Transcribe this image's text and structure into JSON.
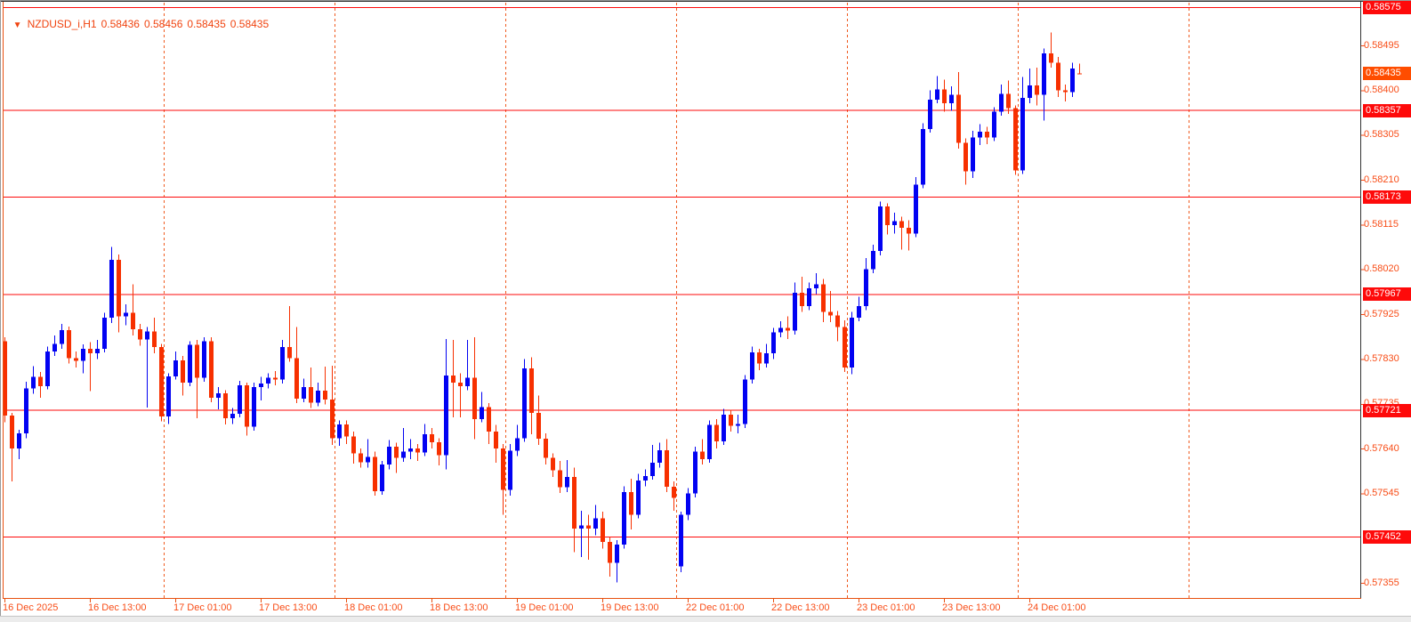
{
  "title": {
    "symbol": "NZDUSD_i,H1",
    "open": "0.58436",
    "high": "0.58456",
    "low": "0.58435",
    "close": "0.58435",
    "dropdown_icon": "▼"
  },
  "colors": {
    "background": "#ffffff",
    "bull_candle": "#0202f2",
    "bear_candle": "#f73000",
    "level_line": "#fe0a0a",
    "level_badge_bg": "#fe0a0a",
    "current_badge_bg": "#ff4d00",
    "badge_text": "#ffffff",
    "axis_text": "#f84d17",
    "title_text": "#f0430f",
    "grid_separator": "#ef5a1f",
    "frame_orange": "#e8500f",
    "frame_dark": "#333333"
  },
  "price_axis": {
    "ticks": [
      {
        "label": "0.58495",
        "price": 0.58495
      },
      {
        "label": "0.58400",
        "price": 0.584
      },
      {
        "label": "0.58305",
        "price": 0.58305
      },
      {
        "label": "0.58210",
        "price": 0.5821
      },
      {
        "label": "0.58115",
        "price": 0.58115
      },
      {
        "label": "0.58020",
        "price": 0.5802
      },
      {
        "label": "0.57925",
        "price": 0.57925
      },
      {
        "label": "0.57830",
        "price": 0.5783
      },
      {
        "label": "0.57735",
        "price": 0.57735
      },
      {
        "label": "0.57640",
        "price": 0.5764
      },
      {
        "label": "0.57545",
        "price": 0.57545
      },
      {
        "label": "0.57355",
        "price": 0.57355
      }
    ]
  },
  "time_axis": {
    "labels": [
      {
        "text": "16 Dec 2025",
        "index": 1
      },
      {
        "text": "16 Dec 13:00",
        "index": 13
      },
      {
        "text": "17 Dec 01:00",
        "index": 25
      },
      {
        "text": "17 Dec 13:00",
        "index": 37
      },
      {
        "text": "18 Dec 01:00",
        "index": 49
      },
      {
        "text": "18 Dec 13:00",
        "index": 61
      },
      {
        "text": "19 Dec 01:00",
        "index": 73
      },
      {
        "text": "19 Dec 13:00",
        "index": 85
      },
      {
        "text": "22 Dec 01:00",
        "index": 97
      },
      {
        "text": "22 Dec 13:00",
        "index": 109
      },
      {
        "text": "23 Dec 01:00",
        "index": 121
      },
      {
        "text": "23 Dec 13:00",
        "index": 133
      },
      {
        "text": "24 Dec 01:00",
        "index": 145
      }
    ]
  },
  "levels": [
    {
      "label": "0.58575",
      "price": 0.58575
    },
    {
      "label": "0.58357",
      "price": 0.58357
    },
    {
      "label": "0.58173",
      "price": 0.58173
    },
    {
      "label": "0.57967",
      "price": 0.57967
    },
    {
      "label": "0.57721",
      "price": 0.57721
    },
    {
      "label": "0.57452",
      "price": 0.57452
    }
  ],
  "current_price": {
    "label": "0.58435",
    "price": 0.58435
  },
  "day_separators": [
    24,
    48,
    72,
    96,
    120,
    144,
    168
  ],
  "chart_data": {
    "type": "candlestick",
    "symbol": "NZDUSD_i",
    "timeframe": "H1",
    "title": "NZDUSD_i,H1",
    "x_start": "16 Dec 2025 00:00",
    "x_step_hours": 1,
    "ylim": [
      0.573,
      0.5859
    ],
    "grid": false,
    "note": "candles are [open, high, low, close]; weekend 20-21 Dec skipped between index 95 and 96",
    "candles": [
      [
        0.57795,
        0.57878,
        0.57788,
        0.57868
      ],
      [
        0.57868,
        0.57876,
        0.57696,
        0.5771
      ],
      [
        0.5771,
        0.57716,
        0.5757,
        0.5764
      ],
      [
        0.5764,
        0.5768,
        0.57618,
        0.57672
      ],
      [
        0.57672,
        0.57782,
        0.57662,
        0.57768
      ],
      [
        0.57768,
        0.57815,
        0.57756,
        0.57792
      ],
      [
        0.57792,
        0.57802,
        0.57748,
        0.57772
      ],
      [
        0.57772,
        0.57856,
        0.57766,
        0.57846
      ],
      [
        0.57846,
        0.5788,
        0.57836,
        0.57862
      ],
      [
        0.57862,
        0.57904,
        0.57852,
        0.57891
      ],
      [
        0.57891,
        0.57899,
        0.5782,
        0.57832
      ],
      [
        0.57832,
        0.57846,
        0.57812,
        0.57826
      ],
      [
        0.57826,
        0.57861,
        0.578,
        0.57852
      ],
      [
        0.57852,
        0.57866,
        0.57762,
        0.57842
      ],
      [
        0.57842,
        0.5787,
        0.5783,
        0.57852
      ],
      [
        0.57852,
        0.57928,
        0.57844,
        0.57918
      ],
      [
        0.57918,
        0.58068,
        0.57906,
        0.5804
      ],
      [
        0.5804,
        0.58052,
        0.57886,
        0.5792
      ],
      [
        0.5792,
        0.57946,
        0.57902,
        0.57928
      ],
      [
        0.57928,
        0.57988,
        0.5788,
        0.57893
      ],
      [
        0.57893,
        0.57904,
        0.57858,
        0.57871
      ],
      [
        0.57871,
        0.57898,
        0.57727,
        0.57888
      ],
      [
        0.57888,
        0.57918,
        0.57842,
        0.57855
      ],
      [
        0.57855,
        0.57862,
        0.57698,
        0.57708
      ],
      [
        0.57708,
        0.578,
        0.57692,
        0.57793
      ],
      [
        0.57793,
        0.57846,
        0.57786,
        0.57827
      ],
      [
        0.57827,
        0.57836,
        0.57752,
        0.5778
      ],
      [
        0.5778,
        0.57868,
        0.57772,
        0.5786
      ],
      [
        0.5786,
        0.5787,
        0.57704,
        0.5779
      ],
      [
        0.5779,
        0.57876,
        0.57782,
        0.57868
      ],
      [
        0.57868,
        0.57876,
        0.57738,
        0.57748
      ],
      [
        0.57748,
        0.5777,
        0.57723,
        0.57757
      ],
      [
        0.57757,
        0.57764,
        0.57691,
        0.57704
      ],
      [
        0.57704,
        0.57726,
        0.57692,
        0.57714
      ],
      [
        0.57714,
        0.57784,
        0.57706,
        0.57774
      ],
      [
        0.57774,
        0.5778,
        0.57668,
        0.57686
      ],
      [
        0.57686,
        0.5778,
        0.57678,
        0.5777
      ],
      [
        0.5777,
        0.57792,
        0.57742,
        0.57778
      ],
      [
        0.57778,
        0.578,
        0.57768,
        0.5779
      ],
      [
        0.5779,
        0.57804,
        0.57774,
        0.57786
      ],
      [
        0.57786,
        0.5787,
        0.57778,
        0.57855
      ],
      [
        0.57855,
        0.57942,
        0.57824,
        0.57832
      ],
      [
        0.57832,
        0.57898,
        0.57736,
        0.57746
      ],
      [
        0.57746,
        0.57788,
        0.57738,
        0.5777
      ],
      [
        0.5777,
        0.57812,
        0.57726,
        0.57737
      ],
      [
        0.57737,
        0.5778,
        0.5773,
        0.57763
      ],
      [
        0.57763,
        0.57814,
        0.57734,
        0.57744
      ],
      [
        0.57744,
        0.57816,
        0.57648,
        0.57662
      ],
      [
        0.57662,
        0.577,
        0.57646,
        0.57691
      ],
      [
        0.57691,
        0.577,
        0.5765,
        0.57666
      ],
      [
        0.57666,
        0.57676,
        0.57608,
        0.5763
      ],
      [
        0.5763,
        0.5764,
        0.576,
        0.57611
      ],
      [
        0.57611,
        0.5766,
        0.576,
        0.57622
      ],
      [
        0.57622,
        0.57634,
        0.5754,
        0.5755
      ],
      [
        0.5755,
        0.57614,
        0.57542,
        0.57606
      ],
      [
        0.57606,
        0.57658,
        0.57596,
        0.57644
      ],
      [
        0.57644,
        0.57652,
        0.57588,
        0.5762
      ],
      [
        0.5762,
        0.57684,
        0.57612,
        0.57634
      ],
      [
        0.57634,
        0.5766,
        0.57618,
        0.5764
      ],
      [
        0.5764,
        0.5765,
        0.57614,
        0.57632
      ],
      [
        0.57632,
        0.57692,
        0.57624,
        0.5767
      ],
      [
        0.5767,
        0.57684,
        0.5764,
        0.57653
      ],
      [
        0.57653,
        0.57662,
        0.57604,
        0.57626
      ],
      [
        0.57626,
        0.57872,
        0.57596,
        0.57795
      ],
      [
        0.57795,
        0.5787,
        0.57706,
        0.5778
      ],
      [
        0.5778,
        0.578,
        0.57706,
        0.57772
      ],
      [
        0.57772,
        0.5787,
        0.57764,
        0.5779
      ],
      [
        0.5779,
        0.57876,
        0.5766,
        0.57702
      ],
      [
        0.57702,
        0.5776,
        0.57696,
        0.57728
      ],
      [
        0.57728,
        0.57736,
        0.5765,
        0.57676
      ],
      [
        0.57676,
        0.5769,
        0.5761,
        0.5764
      ],
      [
        0.5764,
        0.5765,
        0.575,
        0.57552
      ],
      [
        0.57552,
        0.5765,
        0.5754,
        0.57635
      ],
      [
        0.57635,
        0.5769,
        0.57624,
        0.57662
      ],
      [
        0.57662,
        0.5783,
        0.57654,
        0.5781
      ],
      [
        0.5781,
        0.57834,
        0.5767,
        0.57716
      ],
      [
        0.57716,
        0.57752,
        0.57648,
        0.57661
      ],
      [
        0.57661,
        0.57672,
        0.57606,
        0.5762
      ],
      [
        0.5762,
        0.5763,
        0.5758,
        0.57594
      ],
      [
        0.57594,
        0.57614,
        0.57546,
        0.57558
      ],
      [
        0.57558,
        0.57616,
        0.57548,
        0.5758
      ],
      [
        0.5758,
        0.576,
        0.5742,
        0.5747
      ],
      [
        0.5747,
        0.57508,
        0.5741,
        0.57477
      ],
      [
        0.57477,
        0.575,
        0.57404,
        0.5747
      ],
      [
        0.5747,
        0.5752,
        0.57456,
        0.57492
      ],
      [
        0.57492,
        0.57506,
        0.57428,
        0.57442
      ],
      [
        0.57442,
        0.57452,
        0.57368,
        0.57398
      ],
      [
        0.57398,
        0.57446,
        0.57356,
        0.57436
      ],
      [
        0.57436,
        0.5756,
        0.57428,
        0.57548
      ],
      [
        0.57548,
        0.57576,
        0.57468,
        0.575
      ],
      [
        0.575,
        0.57586,
        0.57492,
        0.57572
      ],
      [
        0.57572,
        0.57596,
        0.5756,
        0.57582
      ],
      [
        0.57582,
        0.57648,
        0.57574,
        0.5761
      ],
      [
        0.5761,
        0.57652,
        0.576,
        0.57636
      ],
      [
        0.57636,
        0.5766,
        0.57548,
        0.57559
      ],
      [
        0.57559,
        0.5757,
        0.57508,
        0.57535
      ],
      [
        0.5739,
        0.57506,
        0.57378,
        0.575
      ],
      [
        0.575,
        0.57556,
        0.57488,
        0.57545
      ],
      [
        0.57545,
        0.57644,
        0.57536,
        0.57634
      ],
      [
        0.57634,
        0.5766,
        0.57606,
        0.57618
      ],
      [
        0.57618,
        0.577,
        0.5761,
        0.5769
      ],
      [
        0.5769,
        0.57702,
        0.5764,
        0.57655
      ],
      [
        0.57655,
        0.57724,
        0.57648,
        0.57712
      ],
      [
        0.57712,
        0.57722,
        0.57676,
        0.57688
      ],
      [
        0.57688,
        0.57712,
        0.57672,
        0.57692
      ],
      [
        0.57692,
        0.57796,
        0.57684,
        0.57786
      ],
      [
        0.57786,
        0.57856,
        0.57778,
        0.57844
      ],
      [
        0.57844,
        0.57852,
        0.57806,
        0.5782
      ],
      [
        0.5782,
        0.57862,
        0.57812,
        0.57842
      ],
      [
        0.57842,
        0.57896,
        0.5783,
        0.57886
      ],
      [
        0.57886,
        0.5791,
        0.57876,
        0.57896
      ],
      [
        0.57896,
        0.5792,
        0.57872,
        0.5789
      ],
      [
        0.5789,
        0.57992,
        0.57882,
        0.5797
      ],
      [
        0.5797,
        0.58004,
        0.5793,
        0.57942
      ],
      [
        0.57942,
        0.57992,
        0.57934,
        0.5798
      ],
      [
        0.5798,
        0.58012,
        0.57968,
        0.57988
      ],
      [
        0.57988,
        0.58,
        0.57908,
        0.5793
      ],
      [
        0.5793,
        0.57974,
        0.57908,
        0.57922
      ],
      [
        0.57922,
        0.57932,
        0.57868,
        0.57898
      ],
      [
        0.57898,
        0.57912,
        0.57802,
        0.57812
      ],
      [
        0.57812,
        0.5793,
        0.57798,
        0.57918
      ],
      [
        0.57918,
        0.57962,
        0.5791,
        0.57942
      ],
      [
        0.57942,
        0.58044,
        0.57934,
        0.5802
      ],
      [
        0.5802,
        0.58072,
        0.58012,
        0.58059
      ],
      [
        0.58059,
        0.58164,
        0.5805,
        0.58153
      ],
      [
        0.58153,
        0.5816,
        0.58094,
        0.58114
      ],
      [
        0.58114,
        0.5814,
        0.58096,
        0.58122
      ],
      [
        0.58122,
        0.58132,
        0.58062,
        0.58108
      ],
      [
        0.58108,
        0.58124,
        0.5806,
        0.58096
      ],
      [
        0.58096,
        0.58216,
        0.58088,
        0.582
      ],
      [
        0.582,
        0.5833,
        0.58192,
        0.58318
      ],
      [
        0.58318,
        0.584,
        0.5831,
        0.5838
      ],
      [
        0.5838,
        0.5843,
        0.58372,
        0.58402
      ],
      [
        0.58402,
        0.58422,
        0.58354,
        0.58372
      ],
      [
        0.58372,
        0.58408,
        0.58356,
        0.5839
      ],
      [
        0.5839,
        0.58438,
        0.58276,
        0.58288
      ],
      [
        0.58288,
        0.58298,
        0.582,
        0.58228
      ],
      [
        0.58228,
        0.58314,
        0.58214,
        0.583
      ],
      [
        0.583,
        0.58328,
        0.58284,
        0.58312
      ],
      [
        0.58312,
        0.58322,
        0.58286,
        0.583
      ],
      [
        0.583,
        0.58364,
        0.58292,
        0.58354
      ],
      [
        0.58354,
        0.58412,
        0.58346,
        0.58392
      ],
      [
        0.58392,
        0.5842,
        0.5835,
        0.58362
      ],
      [
        0.58362,
        0.58368,
        0.5822,
        0.5823
      ],
      [
        0.5823,
        0.58428,
        0.58222,
        0.58384
      ],
      [
        0.58384,
        0.58446,
        0.58372,
        0.5841
      ],
      [
        0.5841,
        0.58448,
        0.58368,
        0.5839
      ],
      [
        0.5839,
        0.58488,
        0.58336,
        0.58478
      ],
      [
        0.58478,
        0.58522,
        0.58448,
        0.58458
      ],
      [
        0.58458,
        0.5847,
        0.58386,
        0.584
      ],
      [
        0.584,
        0.58412,
        0.58376,
        0.58396
      ],
      [
        0.58396,
        0.58458,
        0.58386,
        0.58446
      ],
      [
        0.58436,
        0.58456,
        0.58435,
        0.58435
      ]
    ]
  }
}
